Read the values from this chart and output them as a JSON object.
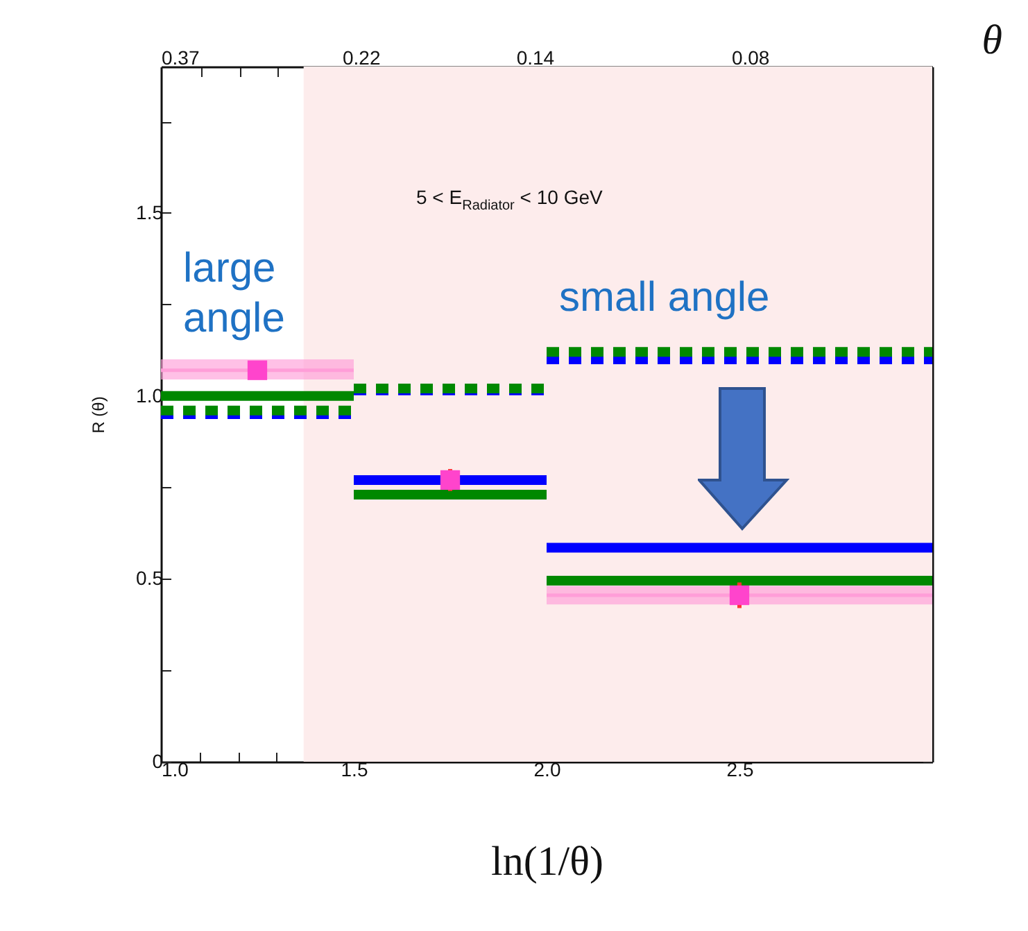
{
  "chart_data": {
    "type": "line",
    "xlabel": "ln(1/θ)",
    "ylabel": "R (θ)",
    "x2label": "θ",
    "xlim": [
      1,
      3
    ],
    "ylim": [
      0,
      1.9
    ],
    "xticks": [
      {
        "value": 1,
        "label": "1.0"
      },
      {
        "value": 1.1,
        "label": null
      },
      {
        "value": 1.2,
        "label": null
      },
      {
        "value": 1.3,
        "label": null
      },
      {
        "value": 1.4,
        "label": null
      },
      {
        "value": 1.5,
        "label": "1.5"
      },
      {
        "value": 1.6,
        "label": null
      },
      {
        "value": 1.7,
        "label": null
      },
      {
        "value": 1.8,
        "label": null
      },
      {
        "value": 1.9,
        "label": null
      },
      {
        "value": 2,
        "label": "2.0"
      },
      {
        "value": 2.1,
        "label": null
      },
      {
        "value": 2.2,
        "label": null
      },
      {
        "value": 2.3,
        "label": null
      },
      {
        "value": 2.4,
        "label": null
      },
      {
        "value": 2.5,
        "label": "2.5"
      },
      {
        "value": 2.6,
        "label": null
      },
      {
        "value": 2.7,
        "label": null
      },
      {
        "value": 2.8,
        "label": null
      },
      {
        "value": 2.9,
        "label": null
      }
    ],
    "x2lim": [
      0.37,
      0.0498
    ],
    "log": "x2",
    "x2ticks": [
      0.37,
      {
        "value": 0.333,
        "label": null
      },
      {
        "value": 0.301,
        "label": null
      },
      {
        "value": 0.273,
        "label": null
      },
      {
        "value": 0.247,
        "label": null
      },
      0.22,
      {
        "value": 0.202,
        "label": null
      },
      {
        "value": 0.183,
        "label": null
      },
      {
        "value": 0.165,
        "label": null
      },
      {
        "value": 0.15,
        "label": null
      },
      0.14,
      {
        "value": 0.122,
        "label": null
      },
      {
        "value": 0.111,
        "label": null
      },
      {
        "value": 0.1,
        "label": null
      },
      {
        "value": 0.091,
        "label": null
      },
      0.08,
      {
        "value": 0.074,
        "label": null
      },
      {
        "value": 0.067,
        "label": null
      },
      {
        "value": 0.061,
        "label": null
      },
      {
        "value": 0.055,
        "label": null
      }
    ],
    "yticks": [
      0,
      {
        "value": 0.25,
        "label": null
      },
      0.5,
      {
        "value": 0.75,
        "label": null
      },
      {
        "value": 1,
        "label": "1.0"
      },
      {
        "value": 1.25,
        "label": null
      },
      1.5,
      {
        "value": 1.75,
        "label": null
      }
    ],
    "grid": false,
    "bands": [
      {
        "axis": "x",
        "from": 1.37,
        "to": 3,
        "color": "#fdecec"
      }
    ],
    "series": [
      {
        "color": "#ff9ed8",
        "x": [
          1,
          1.5,
          null,
          2,
          3
        ],
        "values": [
          1.07,
          1.07,
          null,
          0.455,
          0.455
        ],
        "lower": [
          1.045,
          1.045,
          null,
          0.43,
          0.43
        ],
        "upper": [
          1.1,
          1.1,
          null,
          0.48,
          0.48
        ]
      },
      {
        "color": "#0000ff",
        "line_style": "dashed",
        "x": [
          1,
          1.5,
          null,
          1.5,
          2,
          null,
          2,
          3
        ],
        "values": [
          0.95,
          0.95,
          null,
          1.015,
          1.015,
          null,
          1.1,
          1.1
        ]
      },
      {
        "color": "#008800",
        "line_style": "dashed",
        "x": [
          1,
          1.5,
          null,
          1.5,
          2,
          null,
          2,
          3
        ],
        "values": [
          0.96,
          0.96,
          null,
          1.02,
          1.02,
          null,
          1.12,
          1.12
        ]
      },
      {
        "color": "#0000ff",
        "line_style": "solid",
        "x": [
          1.5,
          2,
          null,
          2,
          3
        ],
        "values": [
          0.77,
          0.77,
          null,
          0.585,
          0.585
        ]
      },
      {
        "color": "#008800",
        "line_style": "solid",
        "x": [
          1,
          1.5,
          null,
          1.5,
          2,
          null,
          2,
          3
        ],
        "values": [
          1.0,
          1.0,
          null,
          0.73,
          0.73,
          null,
          0.495,
          0.495
        ]
      },
      {
        "type": "scatter",
        "color": "#ff44cc",
        "marker": "square",
        "x": [
          1.25,
          1.75,
          2.5
        ],
        "values": [
          1.07,
          0.77,
          0.455
        ],
        "errors": [
          null,
          0.03,
          0.035
        ]
      }
    ],
    "annotations": [
      "5 < E$_{Radiator}$ < 10 GeV",
      "large angle",
      "small angle"
    ]
  }
}
